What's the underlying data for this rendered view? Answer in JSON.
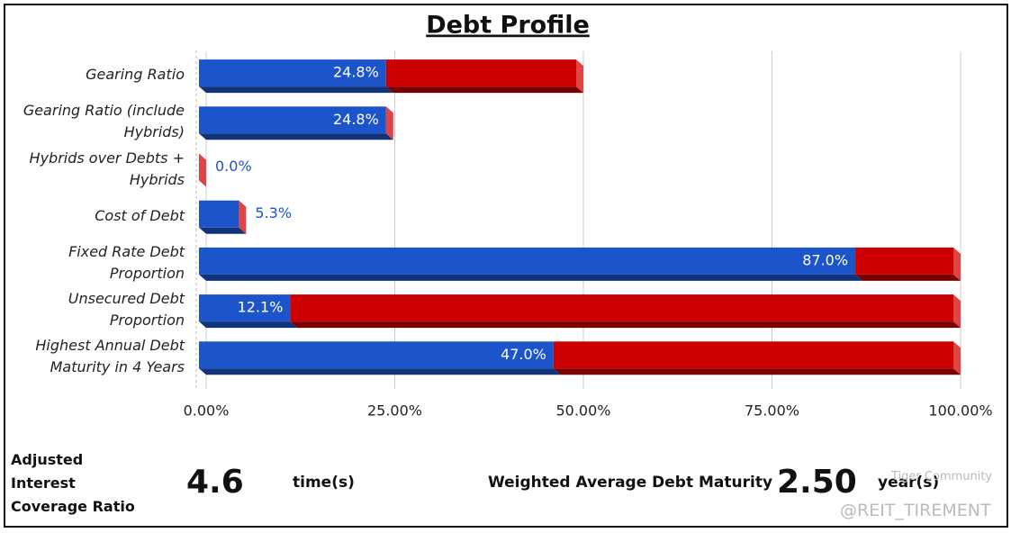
{
  "chart_data": {
    "type": "stacked-bar-3d",
    "title": "Debt Profile",
    "orientation": "horizontal",
    "categories": [
      "Gearing Ratio",
      "Gearing Ratio (include Hybrids)",
      "Hybrids over Debts + Hybrids",
      "Cost of Debt",
      "Fixed Rate Debt Proportion",
      "Unsecured Debt Proportion",
      "Highest Annual Debt Maturity in 4 Years"
    ],
    "series": [
      {
        "color": "#1c55c9",
        "values": [
          24.8,
          24.8,
          0.0,
          5.3,
          87.0,
          12.1,
          47.0
        ],
        "value_labels": [
          "24.8%",
          "24.8%",
          "0.0%",
          "5.3%",
          "87.0%",
          "12.1%",
          "47.0%"
        ]
      },
      {
        "color": "#cc0000",
        "values": [
          25.2,
          0,
          0,
          0,
          13.0,
          87.9,
          53.0
        ]
      }
    ],
    "xlim": [
      0,
      100
    ],
    "xticks": [
      {
        "value": 0,
        "label": "0.00%"
      },
      {
        "value": 25,
        "label": "25.00%"
      },
      {
        "value": 50,
        "label": "50.00%"
      },
      {
        "value": 75,
        "label": "75.00%"
      },
      {
        "value": 100,
        "label": "100.00%"
      }
    ],
    "grid": true
  },
  "footer": {
    "coverage_label": "Adjusted Interest Coverage Ratio",
    "coverage_value": "4.6",
    "coverage_unit": "time(s)",
    "maturity_label": "Weighted Average Debt Maturity",
    "maturity_value": "2.50",
    "maturity_unit": "year(s)",
    "watermark_1": "Tiger Community",
    "watermark_2": "@REIT_TIREMENT"
  }
}
